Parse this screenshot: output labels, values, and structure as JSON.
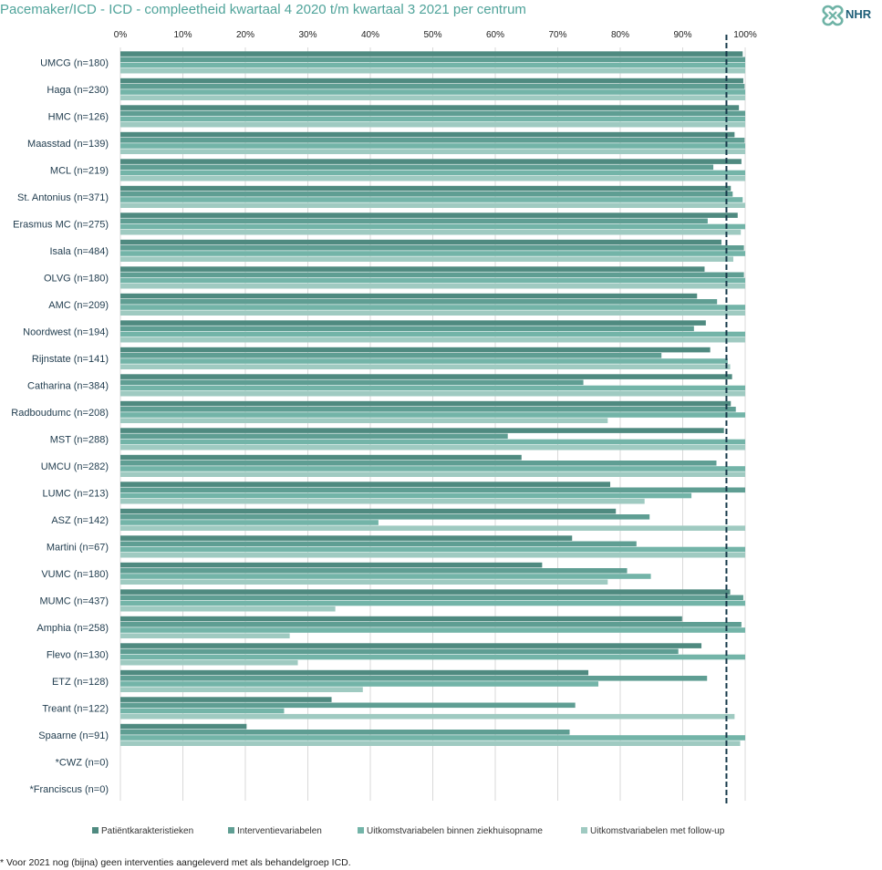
{
  "header": {
    "title": "Pacemaker/ICD - ICD - compleetheid kwartaal 4 2020 t/m kwartaal 3 2021 per centrum",
    "logo_text": "NHR"
  },
  "footnote": "* Voor 2021 nog (bijna) geen interventies aangeleverd met als behandelgroep ICD.",
  "colors": {
    "patient": "#4f8a80",
    "interventie": "#5f9e93",
    "uitkomst_zh": "#73b4a8",
    "uitkomst_fu": "#9fcac1",
    "target_line": "#16394a"
  },
  "chart_data": {
    "type": "bar",
    "orientation": "horizontal",
    "xlim": [
      0,
      100
    ],
    "x_ticks": [
      "0%",
      "10%",
      "20%",
      "30%",
      "40%",
      "50%",
      "60%",
      "70%",
      "80%",
      "90%",
      "100%"
    ],
    "target_value": 97,
    "grid": true,
    "legend_position": "bottom",
    "categories": [
      "UMCG (n=180)",
      "Haga (n=230)",
      "HMC (n=126)",
      "Maasstad (n=139)",
      "MCL (n=219)",
      "St. Antonius (n=371)",
      "Erasmus MC (n=275)",
      "Isala (n=484)",
      "OLVG (n=180)",
      "AMC (n=209)",
      "Noordwest (n=194)",
      "Rijnstate (n=141)",
      "Catharina (n=384)",
      "Radboudumc (n=208)",
      "MST (n=288)",
      "UMCU (n=282)",
      "LUMC (n=213)",
      "ASZ (n=142)",
      "Martini (n=67)",
      "VUMC (n=180)",
      "MUMC (n=437)",
      "Amphia (n=258)",
      "Flevo (n=130)",
      "ETZ (n=128)",
      "Treant (n=122)",
      "Spaarne (n=91)",
      "*CWZ (n=0)",
      "*Franciscus (n=0)"
    ],
    "series": [
      {
        "name": "Patiëntkarakteristieken",
        "values": [
          99.6,
          99.7,
          99.0,
          98.3,
          99.4,
          97.7,
          98.8,
          96.2,
          93.5,
          92.3,
          93.7,
          94.4,
          97.9,
          97.7,
          96.6,
          64.2,
          78.4,
          79.3,
          72.3,
          67.5,
          97.6,
          89.9,
          93.0,
          74.9,
          33.8,
          20.2,
          0,
          0
        ]
      },
      {
        "name": "Interventievariabelen",
        "values": [
          100,
          99.9,
          100,
          99.9,
          94.9,
          98.0,
          94.0,
          99.8,
          99.8,
          95.5,
          91.8,
          86.6,
          74.1,
          98.5,
          62.0,
          95.4,
          100,
          84.7,
          82.6,
          81.1,
          99.7,
          99.4,
          89.3,
          93.9,
          72.8,
          71.9,
          0,
          0
        ]
      },
      {
        "name": "Uitkomstvariabelen binnen ziekhuisopname",
        "values": [
          100,
          100,
          100,
          100,
          100,
          99.6,
          100,
          100,
          100,
          100,
          100,
          97.2,
          100,
          100,
          100,
          100,
          91.4,
          41.3,
          100,
          84.9,
          100,
          100,
          100,
          76.5,
          26.2,
          100,
          0,
          0
        ]
      },
      {
        "name": "Uitkomstvariabelen met follow-up",
        "values": [
          100,
          100,
          100,
          100,
          100,
          100,
          99.3,
          98.1,
          100,
          100,
          100,
          97.6,
          100,
          78.0,
          100,
          100,
          83.9,
          100,
          100,
          78.0,
          34.4,
          27.1,
          28.4,
          38.8,
          98.3,
          99.2,
          0,
          0
        ]
      }
    ]
  }
}
